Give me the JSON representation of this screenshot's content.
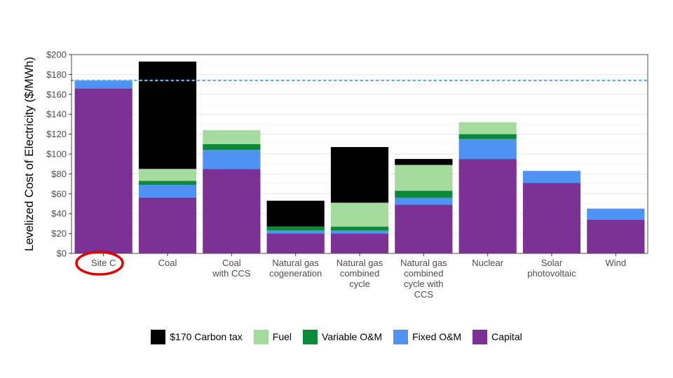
{
  "chart_data": {
    "type": "bar",
    "stacked": true,
    "ylabel": "Levelized Cost of Electricity ($/MWh)",
    "xlabel": "",
    "ylim": [
      0,
      200
    ],
    "yticks": [
      "$0",
      "$20",
      "$40",
      "$60",
      "$80",
      "$100",
      "$120",
      "$140",
      "$160",
      "$180",
      "$200"
    ],
    "grid": true,
    "legend_position": "bottom",
    "reference_line": {
      "value": 174,
      "style": "dotted",
      "color": "#56b4e9"
    },
    "highlighted_category": "Site C",
    "categories": [
      [
        "Site C"
      ],
      [
        "Coal"
      ],
      [
        "Coal",
        "with CCS"
      ],
      [
        "Natural gas",
        "cogeneration"
      ],
      [
        "Natural gas",
        "combined",
        "cycle"
      ],
      [
        "Natural gas",
        "combined",
        "cycle with",
        "CCS"
      ],
      [
        "Nuclear"
      ],
      [
        "Solar",
        "photovoltaic"
      ],
      [
        "Wind"
      ]
    ],
    "series": [
      {
        "name": "Capital",
        "color": "#7b3294",
        "values": [
          166,
          56,
          85,
          20,
          20,
          49,
          95,
          71,
          34
        ]
      },
      {
        "name": "Fixed O&M",
        "color": "#4f94f5",
        "values": [
          8,
          13,
          19,
          3,
          3,
          7,
          20,
          12,
          11
        ]
      },
      {
        "name": "Variable O&M",
        "color": "#0a8a3a",
        "values": [
          0,
          4,
          6,
          4,
          4,
          7,
          5,
          0,
          0
        ]
      },
      {
        "name": "Fuel",
        "color": "#a6dba0",
        "values": [
          0,
          12,
          14,
          0,
          24,
          26,
          12,
          0,
          0
        ]
      },
      {
        "name": "$170 Carbon tax",
        "color": "#000000",
        "values": [
          0,
          108,
          0,
          26,
          56,
          6,
          0,
          0,
          0
        ]
      }
    ],
    "legend_order": [
      "$170 Carbon tax",
      "Fuel",
      "Variable O&M",
      "Fixed O&M",
      "Capital"
    ]
  }
}
